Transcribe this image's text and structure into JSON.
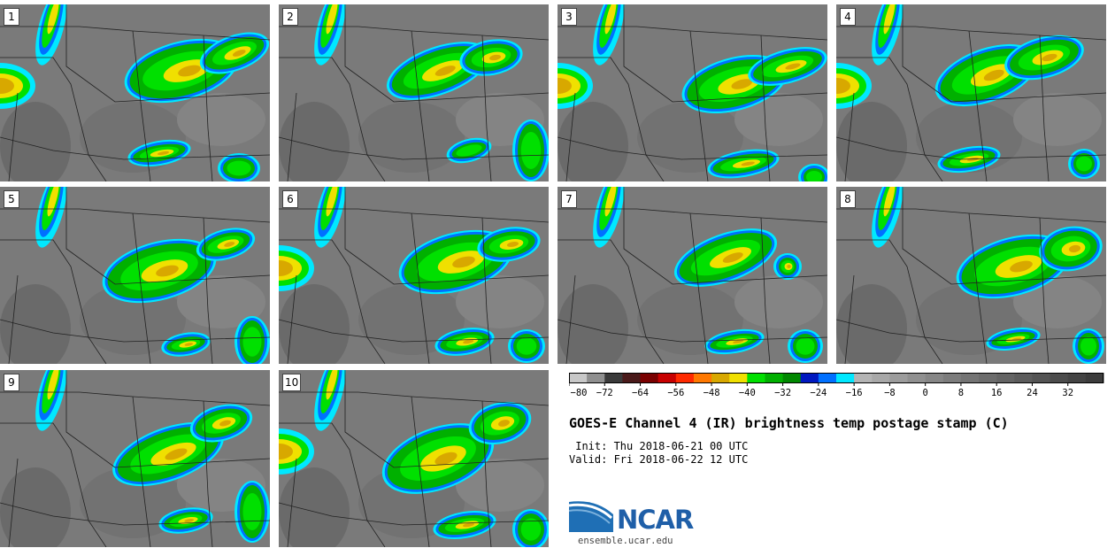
{
  "panels": [
    {
      "label": "1"
    },
    {
      "label": "2"
    },
    {
      "label": "3"
    },
    {
      "label": "4"
    },
    {
      "label": "5"
    },
    {
      "label": "6"
    },
    {
      "label": "7"
    },
    {
      "label": "8"
    },
    {
      "label": "9"
    },
    {
      "label": "10"
    }
  ],
  "colorbar": {
    "tick_labels": [
      "−80",
      "−72",
      "−64",
      "−56",
      "−48",
      "−40",
      "−32",
      "−24",
      "−16",
      "−8",
      "0",
      "8",
      "16",
      "24",
      "32"
    ],
    "colors": [
      "#c8c8c8",
      "#8f8f8f",
      "#3a3a3a",
      "#4a1a1a",
      "#7a0000",
      "#c80000",
      "#ff2a00",
      "#ff7800",
      "#d8a800",
      "#f0e000",
      "#00e000",
      "#00b000",
      "#008800",
      "#0018c0",
      "#0070ff",
      "#00e8ff",
      "#b4b4b4",
      "#a8a8a8",
      "#9c9c9c",
      "#909090",
      "#868686",
      "#7c7c7c",
      "#747474",
      "#6c6c6c",
      "#646464",
      "#5c5c5c",
      "#545454",
      "#4c4c4c",
      "#444444",
      "#3c3c3c"
    ]
  },
  "title": "GOES-E Channel 4 (IR) brightness temp postage stamp (C)",
  "init_line": " Init: Thu 2018-06-21 00 UTC",
  "valid_line": "Valid: Fri 2018-06-22 12 UTC",
  "logo_text": "NCAR",
  "site": "ensemble.ucar.edu"
}
